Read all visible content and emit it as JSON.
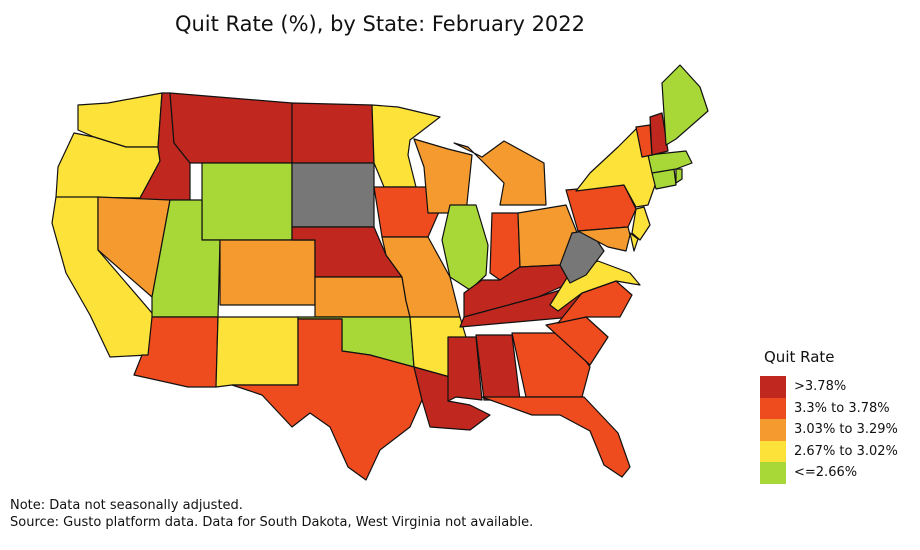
{
  "title": "Quit Rate (%), by State: February 2022",
  "legend": {
    "title": "Quit Rate",
    "items": [
      {
        "label": ">3.78%",
        "color": "#c0281f"
      },
      {
        "label": "3.3% to 3.78%",
        "color": "#ee4b1f"
      },
      {
        "label": "3.03% to 3.29%",
        "color": "#f59a2e"
      },
      {
        "label": "2.67% to 3.02%",
        "color": "#fde23a"
      },
      {
        "label": "<=2.66%",
        "color": "#a8d838"
      }
    ],
    "na_color": "#777777"
  },
  "notes": {
    "line1": "Note: Data not seasonally adjusted.",
    "line2": "Source: Gusto platform data. Data for South Dakota, West Virginia not available."
  },
  "map_data": {
    "bins": [
      ">3.78%",
      "3.3% to 3.78%",
      "3.03% to 3.29%",
      "2.67% to 3.02%",
      "<=2.66%",
      "not available"
    ],
    "states": {
      "WA": 3,
      "OR": 3,
      "CA": 3,
      "ID": 0,
      "MT": 0,
      "WY": 4,
      "NV": 2,
      "UT": 4,
      "AZ": 1,
      "CO": 2,
      "NM": 3,
      "ND": 0,
      "SD": 5,
      "NE": 0,
      "KS": 2,
      "OK": 4,
      "TX": 1,
      "MN": 3,
      "IA": 1,
      "MO": 2,
      "AR": 3,
      "LA": 0,
      "WI": 2,
      "IL": 4,
      "MI": 2,
      "IN": 1,
      "OH": 2,
      "KY": 0,
      "TN": 0,
      "MS": 0,
      "AL": 0,
      "GA": 1,
      "FL": 1,
      "SC": 1,
      "NC": 1,
      "VA": 3,
      "WV": 5,
      "PA": 1,
      "NY": 3,
      "NJ": 3,
      "DE": 3,
      "MD": 2,
      "CT": 4,
      "RI": 4,
      "MA": 4,
      "VT": 1,
      "NH": 0,
      "ME": 4
    }
  }
}
